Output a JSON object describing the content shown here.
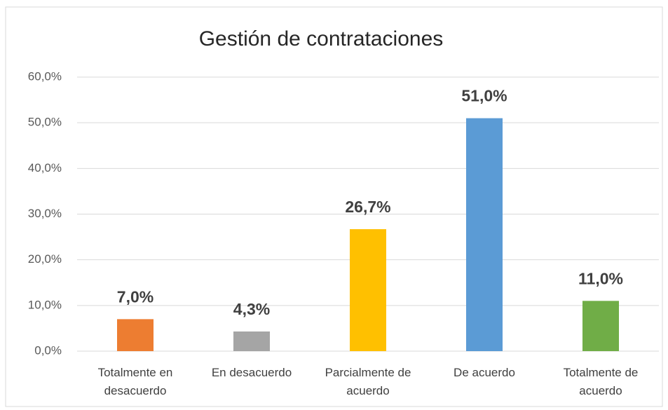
{
  "chart_data": {
    "type": "bar",
    "title": "Gestión de contrataciones",
    "categories": [
      "Totalmente en desacuerdo",
      "En desacuerdo",
      "Parcialmente de acuerdo",
      "De acuerdo",
      "Totalmente de acuerdo"
    ],
    "values": [
      7.0,
      4.3,
      26.7,
      51.0,
      11.0
    ],
    "value_labels": [
      "7,0%",
      "4,3%",
      "26,7%",
      "51,0%",
      "11,0%"
    ],
    "colors": [
      "#ed7d31",
      "#a5a5a5",
      "#ffc000",
      "#5b9bd5",
      "#70ad47"
    ],
    "ylim": [
      0,
      60
    ],
    "yticks": [
      {
        "value": 0,
        "label": "0,0%"
      },
      {
        "value": 10,
        "label": "10,0%"
      },
      {
        "value": 20,
        "label": "20,0%"
      },
      {
        "value": 30,
        "label": "30,0%"
      },
      {
        "value": 40,
        "label": "40,0%"
      },
      {
        "value": 50,
        "label": "50,0%"
      },
      {
        "value": 60,
        "label": "60,0%"
      }
    ],
    "grid": true
  }
}
